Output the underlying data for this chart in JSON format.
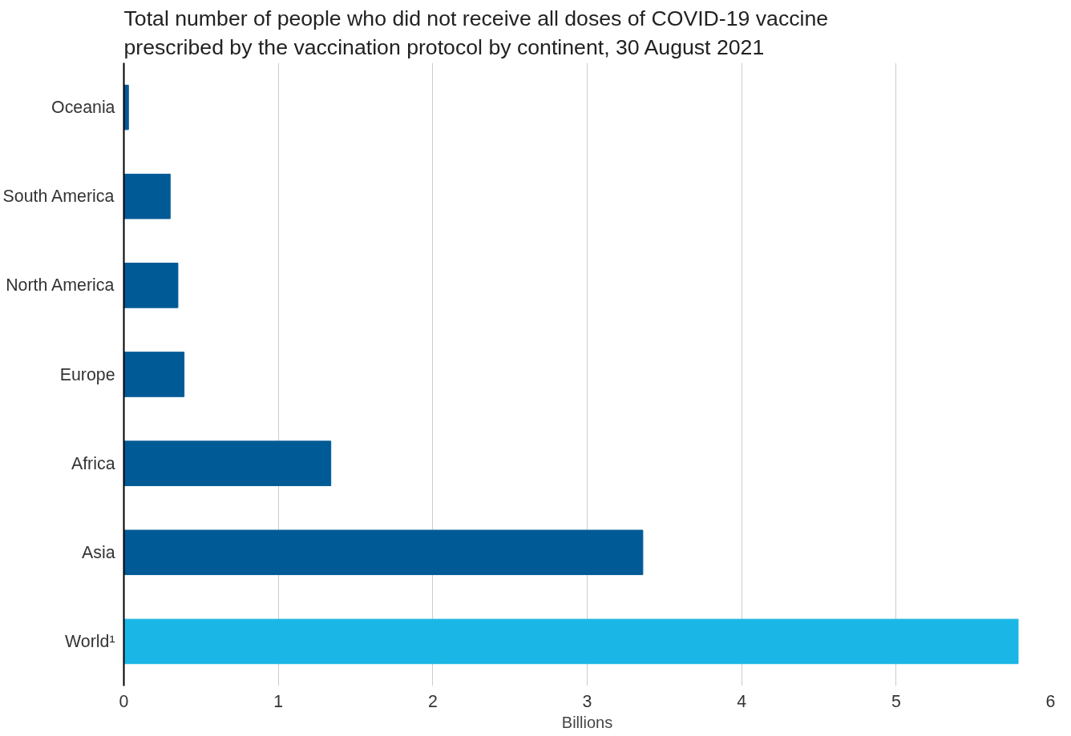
{
  "chart_data": {
    "type": "bar",
    "orientation": "horizontal",
    "title": "Total number of people who did not receive all doses of COVID-19 vaccine\nprescribed by the vaccination protocol by continent, 30 August 2021",
    "categories": [
      "Oceania",
      "South America",
      "North America",
      "Europe",
      "Africa",
      "Asia",
      "World¹"
    ],
    "values": [
      0.03,
      0.3,
      0.35,
      0.39,
      1.34,
      3.36,
      5.79
    ],
    "colors": [
      "#005a96",
      "#005a96",
      "#005a96",
      "#005a96",
      "#005a96",
      "#005a96",
      "#1ab7e6"
    ],
    "xlim": [
      0,
      6
    ],
    "xticks": [
      0,
      1,
      2,
      3,
      4,
      5,
      6
    ],
    "xlabel": "Billions",
    "grid": "x"
  }
}
